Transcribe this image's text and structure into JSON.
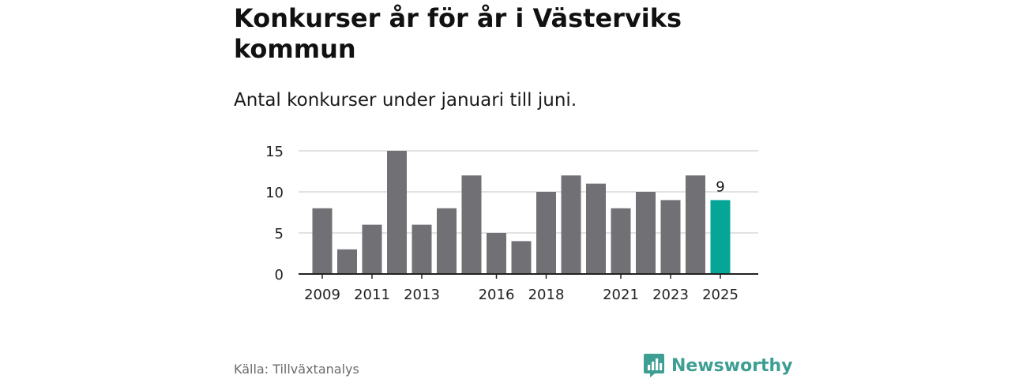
{
  "title": "Konkurser år för år i Västerviks kommun",
  "subtitle": "Antal konkurser under januari till juni.",
  "source": "Källa: Tillväxtanalys",
  "brand": {
    "name": "Newsworthy",
    "logo_icon": "bar-chart-speech-bubble-icon"
  },
  "colors": {
    "bar": "#717075",
    "highlight": "#05a697",
    "gridline": "#d9d9d9",
    "axis": "#222222",
    "brand": "#3d9e93"
  },
  "chart_data": {
    "type": "bar",
    "categories": [
      "2009",
      "2010",
      "2011",
      "2012",
      "2013",
      "2014",
      "2015",
      "2016",
      "2017",
      "2018",
      "2019",
      "2020",
      "2021",
      "2022",
      "2023",
      "2024",
      "2025"
    ],
    "values": [
      8,
      3,
      6,
      15,
      6,
      8,
      12,
      5,
      4,
      10,
      12,
      11,
      8,
      10,
      9,
      12,
      9
    ],
    "x_tick_labels": [
      "2009",
      "2011",
      "2013",
      "2016",
      "2018",
      "2021",
      "2023",
      "2025"
    ],
    "y_ticks": [
      0,
      5,
      10,
      15
    ],
    "ylim": [
      0,
      15
    ],
    "highlight_category": "2025",
    "data_labels": [
      {
        "category": "2025",
        "text": "9"
      }
    ],
    "grid": true,
    "legend": "none",
    "xlabel": "",
    "ylabel": ""
  }
}
